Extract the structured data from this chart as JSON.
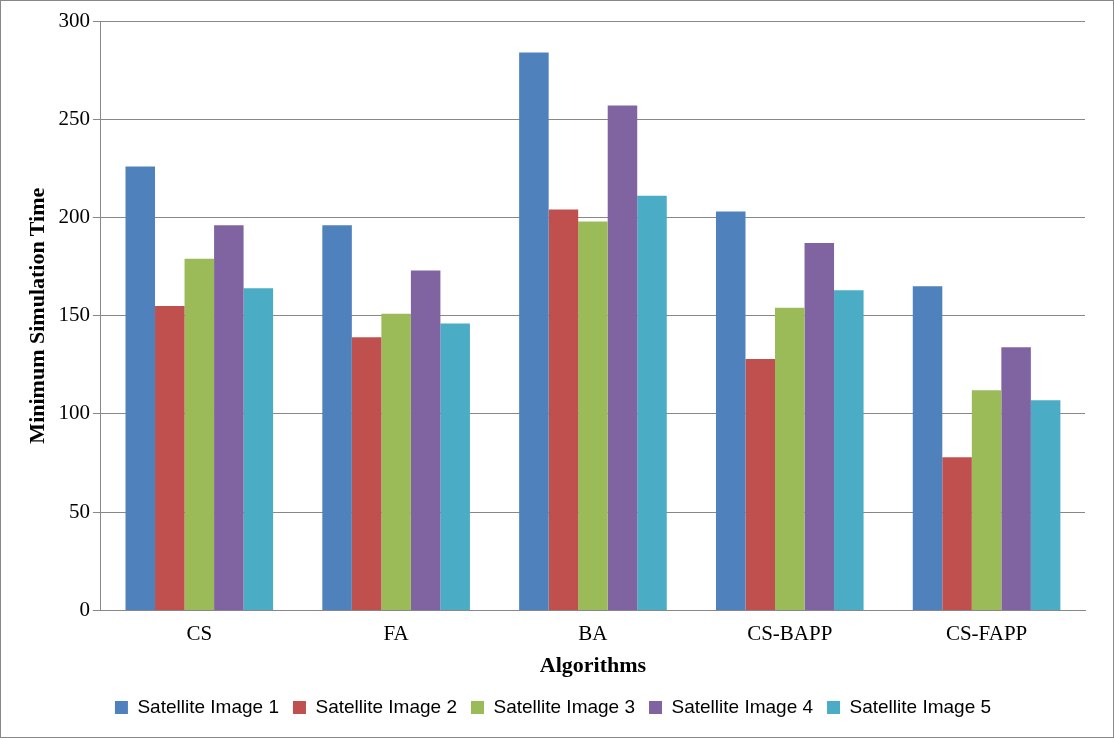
{
  "chart_data": {
    "type": "bar",
    "xlabel": "Algorithms",
    "ylabel": "Minimum Simulation Time",
    "categories": [
      "CS",
      "FA",
      "BA",
      "CS-BAPP",
      "CS-FAPP"
    ],
    "series": [
      {
        "name": "Satellite Image 1",
        "color": "#4f81bd",
        "values": [
          226,
          196,
          284,
          203,
          165
        ]
      },
      {
        "name": "Satellite Image 2",
        "color": "#c0504d",
        "values": [
          155,
          139,
          204,
          128,
          78
        ]
      },
      {
        "name": "Satellite Image 3",
        "color": "#9bbb59",
        "values": [
          179,
          151,
          198,
          154,
          112
        ]
      },
      {
        "name": "Satellite Image 4",
        "color": "#8064a2",
        "values": [
          196,
          173,
          257,
          187,
          134
        ]
      },
      {
        "name": "Satellite Image 5",
        "color": "#4bacc6",
        "values": [
          164,
          146,
          211,
          163,
          107
        ]
      }
    ],
    "ylim": [
      0,
      300
    ],
    "yticks": [
      0,
      50,
      100,
      150,
      200,
      250,
      300
    ],
    "grid": "y",
    "legend": "bottom"
  }
}
